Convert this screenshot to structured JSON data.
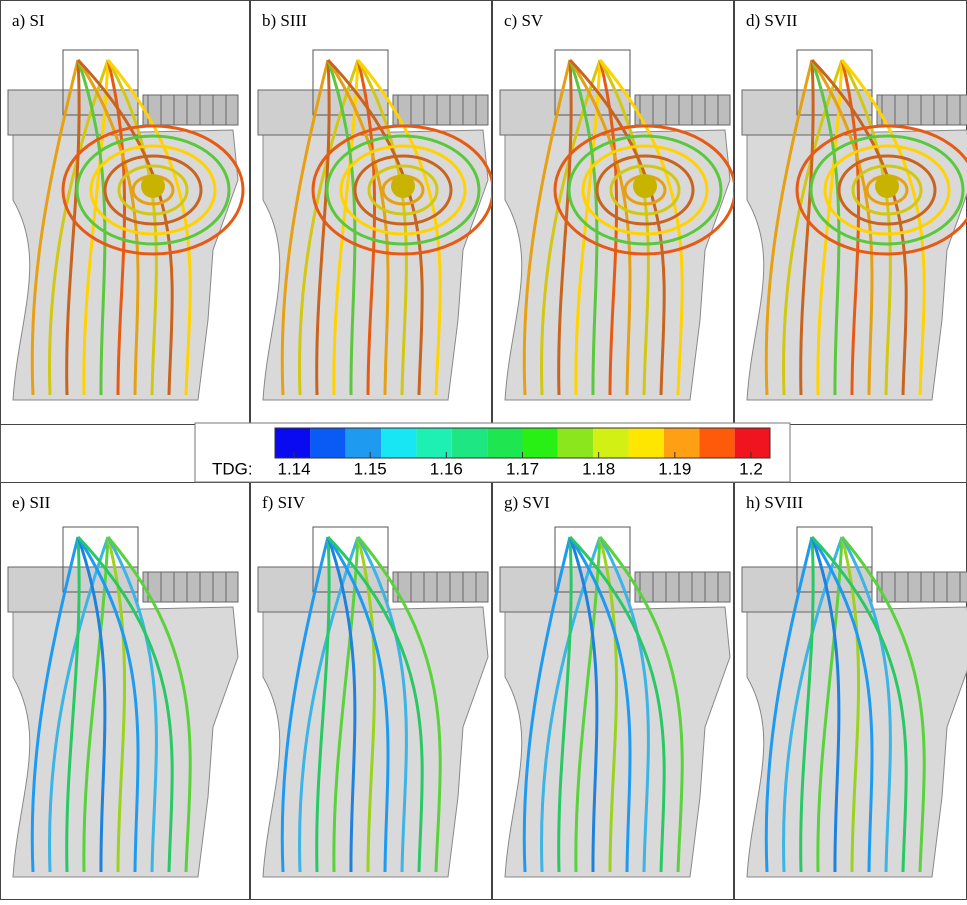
{
  "panels": [
    {
      "label": "a) SI"
    },
    {
      "label": "b) SIII"
    },
    {
      "label": "c) SV"
    },
    {
      "label": "d) SVII"
    },
    {
      "label": "e) SII"
    },
    {
      "label": "f) SIV"
    },
    {
      "label": "g) SVI"
    },
    {
      "label": "h) SVIII"
    }
  ],
  "colorbar": {
    "title": "TDG:",
    "lim": [
      1.1375,
      1.2025
    ],
    "ticks": [
      1.14,
      1.15,
      1.16,
      1.17,
      1.18,
      1.19,
      1.2
    ],
    "colors": [
      "#0a0af0",
      "#0a5af5",
      "#1e9bf0",
      "#19e6f5",
      "#1ef0b4",
      "#1ee682",
      "#1ee650",
      "#28f014",
      "#8ce61e",
      "#d2f014",
      "#ffe600",
      "#ffa014",
      "#ff5a0a",
      "#f0141e"
    ]
  }
}
